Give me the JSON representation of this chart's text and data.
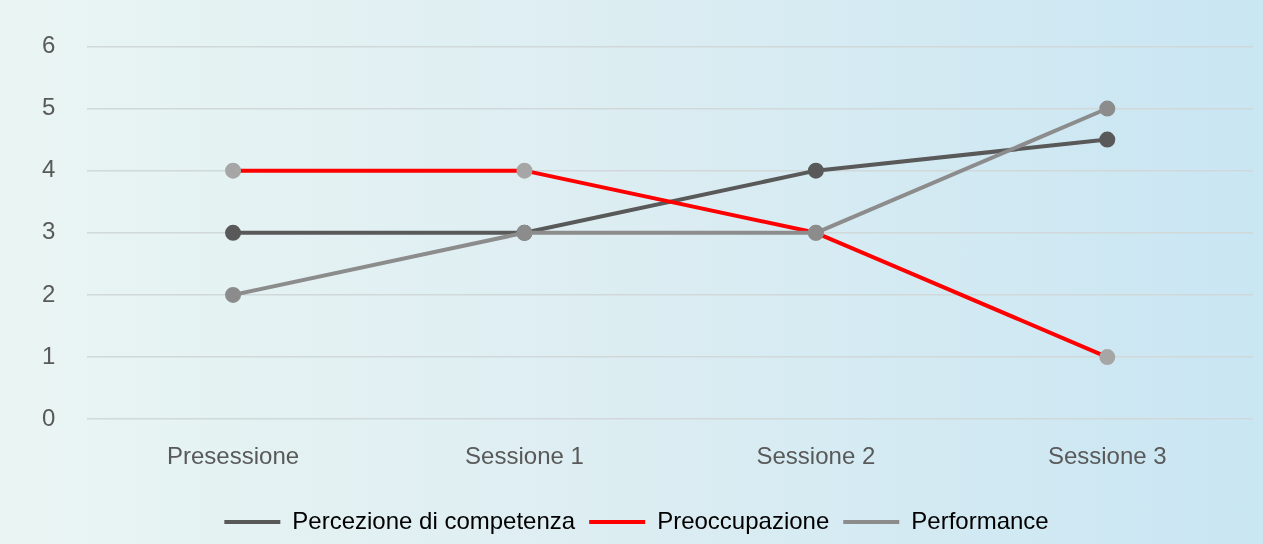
{
  "chart_data": {
    "type": "line",
    "categories": [
      "Presessione",
      "Sessione 1",
      "Sessione 2",
      "Sessione 3"
    ],
    "series": [
      {
        "name": "Percezione di competenza",
        "color": "#595959",
        "values": [
          3,
          3,
          4,
          4.5
        ]
      },
      {
        "name": "Preoccupazione",
        "color": "#ff0000",
        "colors": [
          "#a6a6a6",
          "#a6a6a6",
          "#a6a6a6",
          "#a6a6a6"
        ],
        "values": [
          4,
          4,
          3,
          1
        ]
      },
      {
        "name": "Performance",
        "color": "#8c8c8c",
        "values": [
          2,
          3,
          3,
          5
        ]
      }
    ],
    "ylim": [
      0,
      6
    ],
    "yticks": [
      0,
      1,
      2,
      3,
      4,
      5,
      6
    ],
    "grid": "y",
    "legend": "bottom",
    "marker": "circle",
    "line_style": "solid"
  }
}
